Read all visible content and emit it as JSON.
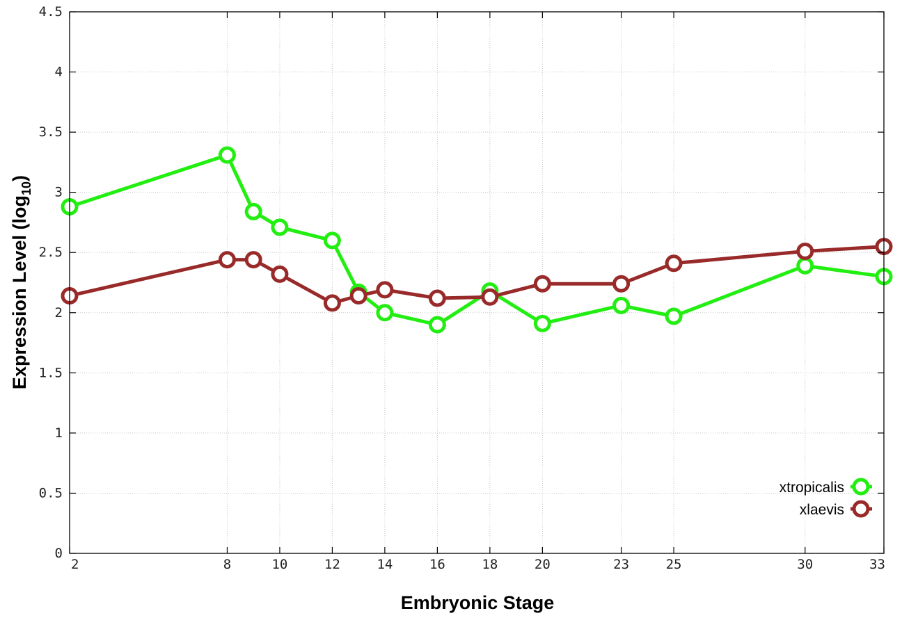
{
  "chart_data": {
    "type": "line",
    "xlabel": "Embryonic Stage",
    "ylabel_main": "Expression Level (log",
    "ylabel_sub": "10",
    "ylabel_close": ")",
    "x_categories": [
      "2",
      "8",
      "9",
      "10",
      "12",
      "13",
      "14",
      "16",
      "18",
      "20",
      "23",
      "25",
      "30",
      "33"
    ],
    "x_tick_labels": [
      "2",
      "8",
      "10",
      "12",
      "14",
      "16",
      "18",
      "20",
      "23",
      "25",
      "30",
      "33"
    ],
    "x_tick_values": [
      "2",
      "8",
      "10",
      "12",
      "14",
      "16",
      "18",
      "20",
      "23",
      "25",
      "30",
      "33"
    ],
    "ylim": [
      0,
      4.5
    ],
    "y_ticks": [
      0,
      0.5,
      1,
      1.5,
      2,
      2.5,
      3,
      3.5,
      4,
      4.5
    ],
    "y_tick_labels": [
      "0",
      "0.5",
      "1",
      "1.5",
      "2",
      "2.5",
      "3",
      "3.5",
      "4",
      "4.5"
    ],
    "grid": true,
    "legend_position": "bottom-right",
    "series": [
      {
        "name": "xtropicalis",
        "color": "#22ee11",
        "marker": "open-circle",
        "values": [
          2.88,
          3.31,
          2.84,
          2.71,
          2.6,
          2.17,
          2.0,
          1.9,
          2.18,
          1.91,
          2.06,
          1.97,
          2.39,
          2.3
        ]
      },
      {
        "name": "xlaevis",
        "color": "#992a2a",
        "marker": "open-circle",
        "values": [
          2.14,
          2.44,
          2.44,
          2.32,
          2.08,
          2.14,
          2.19,
          2.12,
          2.13,
          2.24,
          2.24,
          2.41,
          2.51,
          2.55
        ]
      }
    ]
  }
}
